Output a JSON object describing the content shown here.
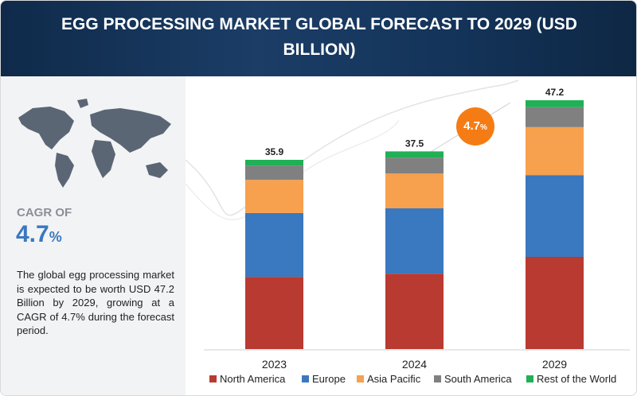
{
  "chart_data": {
    "type": "stacked-bar",
    "title": "EGG PROCESSING MARKET GLOBAL FORECAST TO 2029 (USD BILLION)",
    "cagr_label": "CAGR OF",
    "cagr_value": "4.7",
    "cagr_unit": "%",
    "description": "The global egg processing market is expected to be worth USD 47.2 Billion by 2029, growing at a CAGR of 4.7% during the forecast period.",
    "categories": [
      "2023",
      "2024",
      "2029"
    ],
    "totals": [
      35.9,
      37.5,
      47.2
    ],
    "series": [
      {
        "name": "North America",
        "color": "#b93a31",
        "values": [
          13.7,
          14.3,
          17.5
        ]
      },
      {
        "name": "Europe",
        "color": "#3a78bf",
        "values": [
          12.1,
          12.4,
          15.5
        ]
      },
      {
        "name": "Asia Pacific",
        "color": "#f7a04d",
        "values": [
          6.3,
          6.6,
          9.1
        ]
      },
      {
        "name": "South America",
        "color": "#808080",
        "values": [
          2.7,
          3.0,
          3.8
        ]
      },
      {
        "name": "Rest of the World",
        "color": "#20b055",
        "values": [
          1.1,
          1.2,
          1.3
        ]
      }
    ]
  }
}
